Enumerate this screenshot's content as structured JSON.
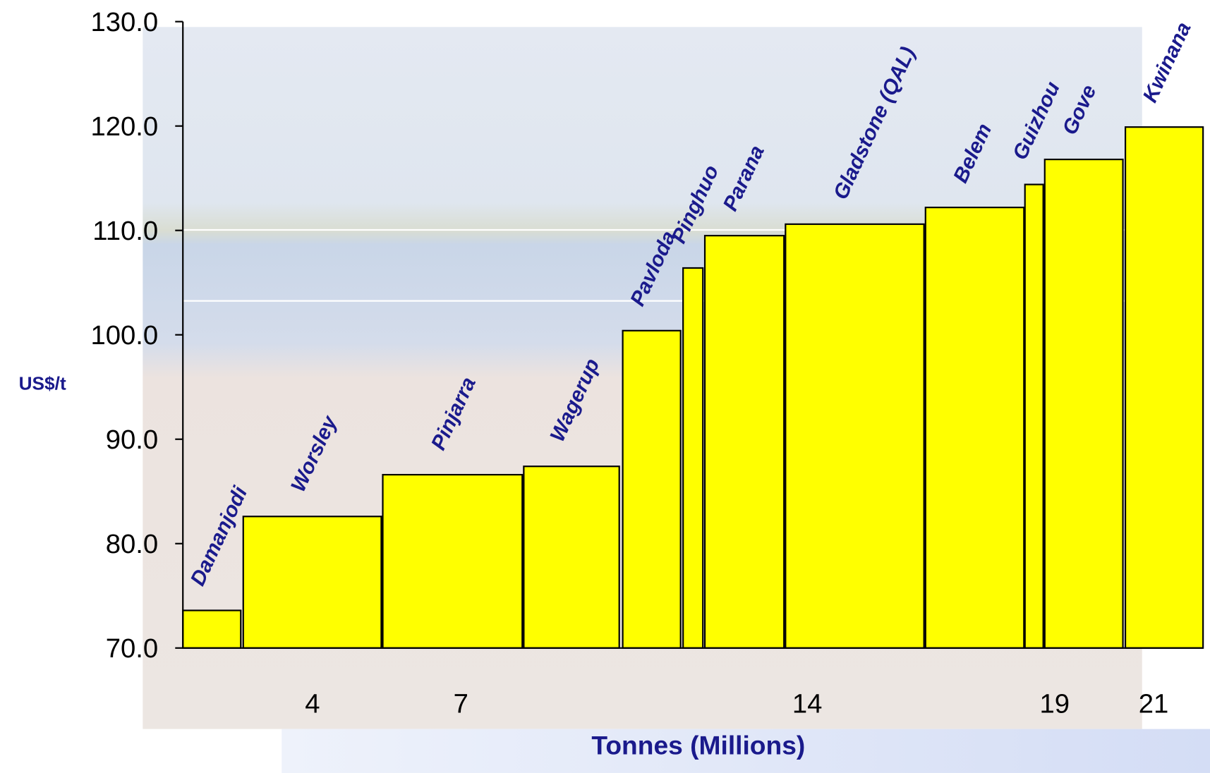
{
  "chart_data": {
    "type": "variable-width-bar",
    "x_label": "Tonnes (Millions)",
    "y_label": "US$/t",
    "categories": [
      "Damanjodi",
      "Worsley",
      "Pinjarra",
      "Wagerup",
      "Pavloda",
      "Pinghuo",
      "Parana",
      "Gladstone (QAL)",
      "Belem",
      "Guizhou",
      "Gove",
      "Kwinana"
    ],
    "x_start": [
      1.38,
      2.6,
      5.42,
      8.27,
      10.27,
      11.49,
      11.93,
      13.56,
      16.39,
      18.4,
      18.8,
      20.43
    ],
    "x_end": [
      2.55,
      5.39,
      8.24,
      10.2,
      11.44,
      11.89,
      13.53,
      16.36,
      18.38,
      18.77,
      20.38,
      22.0
    ],
    "values": [
      73.6,
      82.6,
      86.6,
      87.4,
      100.4,
      106.4,
      109.5,
      110.6,
      112.2,
      114.4,
      116.8,
      119.9
    ],
    "color": "#ffff00",
    "label_color": "#1a1a8c",
    "xlim": [
      1.38,
      22.0
    ],
    "xticks": [
      4,
      7,
      14,
      19,
      21
    ],
    "ylim": [
      70,
      130
    ],
    "yticks": [
      {
        "value": 70,
        "label": "70.0"
      },
      {
        "value": 80,
        "label": "80.0"
      },
      {
        "value": 90,
        "label": "90.0"
      },
      {
        "value": 100,
        "label": "100.0"
      },
      {
        "value": 110,
        "label": "110.0"
      },
      {
        "value": 120,
        "label": "120.0"
      },
      {
        "value": 130,
        "label": "130.0"
      }
    ]
  }
}
